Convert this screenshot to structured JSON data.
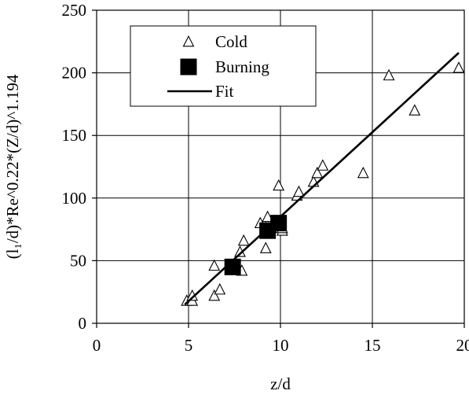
{
  "chart_data": {
    "type": "scatter",
    "xlabel": "z/d",
    "ylabel": "(l₁/d)*Re^0.22*(Z/d)^1.194",
    "xlim": [
      0,
      20
    ],
    "ylim": [
      0,
      250
    ],
    "x_ticks": [
      0,
      5,
      10,
      15,
      20
    ],
    "y_ticks": [
      0,
      50,
      100,
      150,
      200,
      250
    ],
    "grid": true,
    "legend_position": "top-left",
    "series": [
      {
        "name": "Cold",
        "marker": "open-triangle",
        "color": "#000000",
        "points": [
          [
            4.9,
            18
          ],
          [
            5.2,
            18
          ],
          [
            5.2,
            22
          ],
          [
            6.4,
            22
          ],
          [
            6.4,
            46
          ],
          [
            6.7,
            27
          ],
          [
            7.8,
            57
          ],
          [
            7.9,
            42
          ],
          [
            8.0,
            66
          ],
          [
            8.9,
            80
          ],
          [
            9.2,
            76
          ],
          [
            9.2,
            60
          ],
          [
            9.3,
            85
          ],
          [
            9.5,
            76
          ],
          [
            9.9,
            110
          ],
          [
            10.1,
            74
          ],
          [
            10.1,
            76
          ],
          [
            10.9,
            102
          ],
          [
            11.0,
            105
          ],
          [
            11.8,
            113
          ],
          [
            12.0,
            120
          ],
          [
            12.3,
            126
          ],
          [
            14.5,
            120
          ],
          [
            15.9,
            198
          ],
          [
            17.3,
            170
          ],
          [
            19.7,
            204
          ]
        ]
      },
      {
        "name": "Burning",
        "marker": "filled-square",
        "color": "#000000",
        "points": [
          [
            7.4,
            45
          ],
          [
            9.3,
            74
          ],
          [
            9.9,
            80
          ]
        ]
      },
      {
        "name": "Fit",
        "marker": "line",
        "color": "#000000",
        "points": [
          [
            4.8,
            15
          ],
          [
            19.7,
            216
          ]
        ]
      }
    ]
  }
}
